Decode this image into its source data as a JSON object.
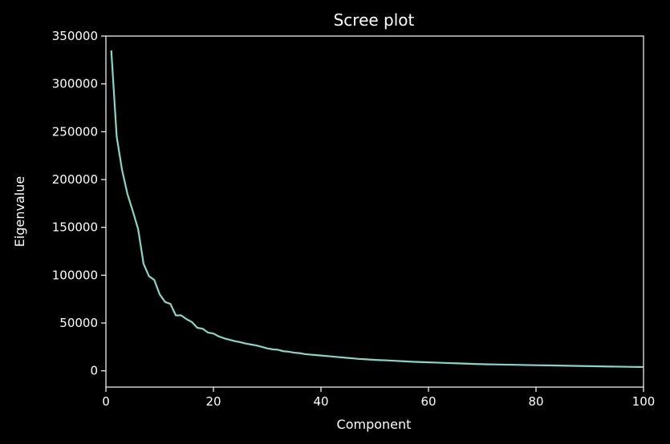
{
  "chart_data": {
    "type": "line",
    "title": "Scree plot",
    "xlabel": "Component",
    "ylabel": "Eigenvalue",
    "xlim": [
      0,
      100
    ],
    "ylim": [
      -17000,
      350000
    ],
    "xticks": [
      0,
      20,
      40,
      60,
      80,
      100
    ],
    "yticks": [
      0,
      50000,
      100000,
      150000,
      200000,
      250000,
      300000,
      350000
    ],
    "grid": false,
    "colors": {
      "background": "#000000",
      "line": "#8dd3c7",
      "axes": "#ffffff"
    },
    "series": [
      {
        "x": [
          1,
          2,
          3,
          4,
          5,
          6,
          7,
          8,
          9,
          10,
          11,
          12,
          13,
          14,
          15,
          16,
          17,
          18,
          19,
          20,
          21,
          22,
          23,
          24,
          25,
          26,
          27,
          28,
          29,
          30,
          31,
          32,
          33,
          34,
          35,
          36,
          37,
          38,
          39,
          40,
          41,
          42,
          43,
          44,
          45,
          46,
          47,
          48,
          49,
          50,
          51,
          52,
          53,
          54,
          55,
          56,
          57,
          58,
          59,
          60,
          61,
          62,
          63,
          64,
          65,
          66,
          67,
          68,
          69,
          70,
          71,
          72,
          73,
          74,
          75,
          76,
          77,
          78,
          79,
          80,
          81,
          82,
          83,
          84,
          85,
          86,
          87,
          88,
          89,
          90,
          91,
          92,
          93,
          94,
          95,
          96,
          97,
          98,
          99,
          100
        ],
        "values": [
          335000,
          245000,
          210000,
          185000,
          167000,
          148000,
          112000,
          99000,
          95000,
          80000,
          72000,
          70000,
          58000,
          58000,
          54000,
          51000,
          45000,
          44000,
          40000,
          39000,
          36000,
          34000,
          32500,
          31000,
          30000,
          28500,
          27500,
          26500,
          25000,
          23500,
          22500,
          22000,
          20500,
          20000,
          19000,
          18500,
          17500,
          17000,
          16500,
          16000,
          15500,
          15000,
          14500,
          14000,
          13500,
          13000,
          12500,
          12200,
          11800,
          11500,
          11200,
          11000,
          10700,
          10400,
          10100,
          9800,
          9500,
          9300,
          9100,
          8900,
          8700,
          8500,
          8300,
          8100,
          7900,
          7700,
          7500,
          7300,
          7100,
          7000,
          6800,
          6700,
          6600,
          6500,
          6400,
          6300,
          6200,
          6100,
          6000,
          5900,
          5800,
          5700,
          5600,
          5500,
          5400,
          5300,
          5200,
          5100,
          5000,
          4900,
          4800,
          4700,
          4600,
          4500,
          4400,
          4300,
          4200,
          4100,
          4050,
          4000
        ]
      }
    ]
  }
}
